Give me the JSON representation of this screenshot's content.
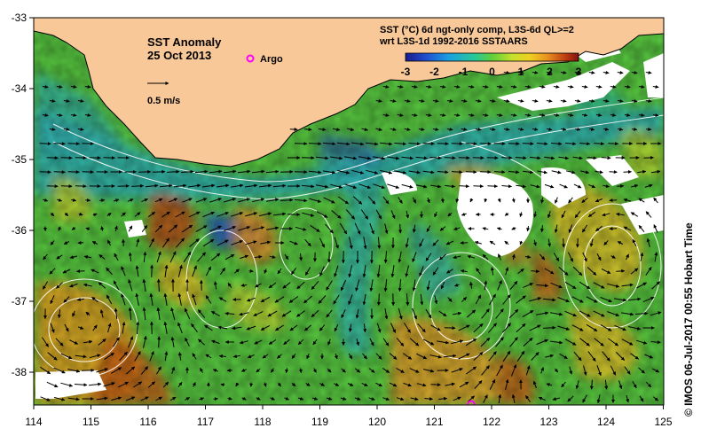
{
  "map": {
    "title": "SST Anomaly",
    "date": "25 Oct 2013",
    "argo_label": "Argo",
    "velocity_scale_label": "0.5 m/s",
    "colorbar_title_line1": "SST (°C) 6d ngt-only comp, L3S-6d QL>=2",
    "colorbar_title_line2": "wrt L3S-1d 1992-2016 SSTAARS",
    "colorbar_ticks": [
      "-3",
      "-2",
      "-1",
      "0",
      "1",
      "2",
      "3"
    ],
    "colorbar_range": [
      -3,
      3
    ],
    "credit": "©  IMOS 06-Jul-2017 00:55 Hobart Time",
    "x_ticks": [
      "114",
      "115",
      "116",
      "117",
      "118",
      "119",
      "120",
      "121",
      "122",
      "123",
      "124",
      "125"
    ],
    "y_ticks": [
      "-33",
      "-34",
      "-35",
      "-36",
      "-37",
      "-38"
    ],
    "lon_range": [
      114,
      125
    ],
    "lat_range": [
      -38.5,
      -33
    ],
    "colors": {
      "land": "#f8c898",
      "no_data": "#ffffff",
      "argo_marker": "#ff00ff",
      "contours": "#ffffff",
      "arrows": "#000000"
    }
  }
}
